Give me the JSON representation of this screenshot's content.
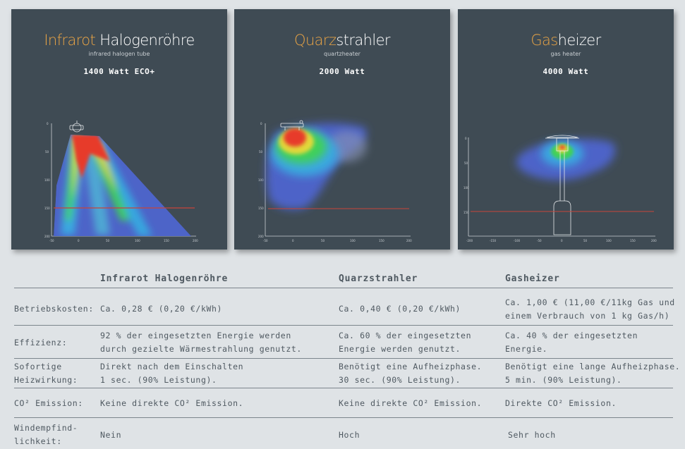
{
  "panels": [
    {
      "title_accent": "Infrarot",
      "title_rest": " Halogenröhre",
      "subtitle": "infrared halogen tube",
      "watt": "1400 Watt ECO+",
      "y_ticks": [
        "0",
        "50",
        "100",
        "150",
        "200"
      ],
      "x_ticks": [
        "-50",
        "0",
        "50",
        "100",
        "150",
        "200"
      ]
    },
    {
      "title_accent": "Quarz",
      "title_rest": "strahler",
      "subtitle": "quartzheater",
      "watt": "2000 Watt",
      "y_ticks": [
        "0",
        "50",
        "100",
        "150",
        "200"
      ],
      "x_ticks": [
        "-50",
        "0",
        "50",
        "100",
        "150",
        "200"
      ]
    },
    {
      "title_accent": "Gas",
      "title_rest": "heizer",
      "subtitle": "gas heater",
      "watt": "4000 Watt",
      "y_ticks": [
        "0",
        "50",
        "100",
        "150"
      ],
      "x_ticks": [
        "-200",
        "-150",
        "-100",
        "-50",
        "0",
        "50",
        "100",
        "150",
        "200"
      ]
    }
  ],
  "colors": {
    "panel_bg": "#3f4b54",
    "accent": "#e9a445",
    "red_line": "#c8443a",
    "page_bg": "#dfe3e6",
    "text": "#4f5961"
  },
  "table": {
    "headers": [
      "Infrarot Halogenröhre",
      "Quarzstrahler",
      "Gasheizer"
    ],
    "rows": [
      {
        "label": "Betriebskosten:",
        "c1": "Ca. 0,28 € (0,20 €/kWh)",
        "c2": "Ca. 0,40 € (0,20 €/kWh)",
        "c3a": "Ca. 1,00 € (11,00 €/11kg Gas und",
        "c3b": "einem Verbrauch von 1 kg Gas/h)"
      },
      {
        "label": "Effizienz:",
        "c1a": "92 % der eingesetzten Energie werden",
        "c1b": "durch gezielte Wärmestrahlung genutzt.",
        "c2a": "Ca. 60 % der eingesetzten",
        "c2b": "Energie werden genutzt.",
        "c3a": "Ca. 40 % der eingesetzten",
        "c3b": "Energie."
      },
      {
        "label_a": "Sofortige",
        "label_b": "Heizwirkung:",
        "c1a": "Direkt nach dem Einschalten",
        "c1b": "1 sec. (90% Leistung).",
        "c2a": "Benötigt eine Aufheizphase.",
        "c2b": "30 sec. (90% Leistung).",
        "c3a": "Benötigt eine lange Aufheizphase.",
        "c3b": "5 min. (90% Leistung)."
      },
      {
        "label": "CO² Emission:",
        "c1": "Keine direkte CO² Emission.",
        "c2": "Keine direkte CO² Emission.",
        "c3": "Direkte CO² Emission."
      },
      {
        "label_a": "Windempfind-",
        "label_b": "lichkeit:",
        "c1": "Nein",
        "c2": "Hoch",
        "c3": "Sehr hoch"
      }
    ]
  }
}
